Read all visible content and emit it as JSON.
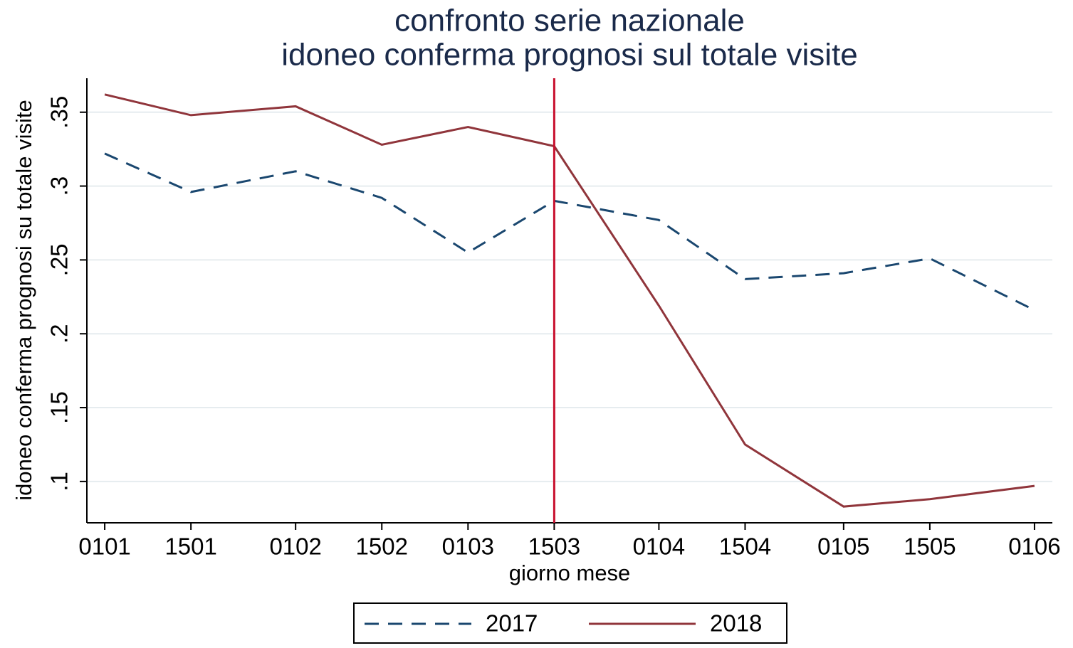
{
  "chart_data": {
    "type": "line",
    "title": [
      "confronto serie nazionale",
      "idoneo conferma prognosi sul totale visite"
    ],
    "xlabel": "giorno mese",
    "ylabel": "idoneo conferma prognosi su totale visite",
    "x": [
      1,
      15,
      32,
      46,
      60,
      74,
      91,
      105,
      121,
      135,
      152
    ],
    "series": [
      {
        "name": "2017",
        "color": "#1a476f",
        "dash": true,
        "values": [
          0.322,
          0.296,
          0.31,
          0.292,
          0.255,
          0.29,
          0.277,
          0.237,
          0.241,
          0.251,
          0.216
        ]
      },
      {
        "name": "2018",
        "color": "#90353b",
        "dash": false,
        "values": [
          0.362,
          0.348,
          0.354,
          0.328,
          0.34,
          0.327,
          0.219,
          0.125,
          0.083,
          0.088,
          0.097
        ]
      }
    ],
    "xlim": [
      -1.9,
      154.9
    ],
    "ylim": [
      0.072,
      0.373
    ],
    "xticks": [
      {
        "value": 1,
        "label": "0101"
      },
      {
        "value": 15,
        "label": "1501"
      },
      {
        "value": 32,
        "label": "0102"
      },
      {
        "value": 46,
        "label": "1502"
      },
      {
        "value": 60,
        "label": "0103"
      },
      {
        "value": 74,
        "label": "1503"
      },
      {
        "value": 91,
        "label": "0104"
      },
      {
        "value": 105,
        "label": "1504"
      },
      {
        "value": 121,
        "label": "0105"
      },
      {
        "value": 135,
        "label": "1505"
      },
      {
        "value": 152,
        "label": "0106"
      }
    ],
    "yticks": [
      {
        "value": 0.1,
        "label": ".1"
      },
      {
        "value": 0.15,
        "label": ".15"
      },
      {
        "value": 0.2,
        "label": ".2"
      },
      {
        "value": 0.25,
        "label": ".25"
      },
      {
        "value": 0.3,
        "label": ".3"
      },
      {
        "value": 0.35,
        "label": ".35"
      }
    ],
    "grid": true,
    "vline": {
      "value": 74,
      "color": "#c8102e"
    },
    "legend": "bottom"
  }
}
